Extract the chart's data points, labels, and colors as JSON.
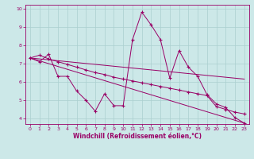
{
  "xlabel": "Windchill (Refroidissement éolien,°C)",
  "bg_color": "#cce8e8",
  "grid_color": "#aacfcf",
  "line_color": "#990066",
  "xlim": [
    -0.5,
    23.5
  ],
  "ylim": [
    3.7,
    10.2
  ],
  "xticks": [
    0,
    1,
    2,
    3,
    4,
    5,
    6,
    7,
    8,
    9,
    10,
    11,
    12,
    13,
    14,
    15,
    16,
    17,
    18,
    19,
    20,
    21,
    22,
    23
  ],
  "yticks": [
    4,
    5,
    6,
    7,
    8,
    9,
    10
  ],
  "series": [
    {
      "x": [
        0,
        1,
        2,
        3,
        4,
        5,
        6,
        7,
        8,
        9,
        10,
        11,
        12,
        13,
        14,
        15,
        16,
        17,
        18,
        19,
        20,
        21,
        22,
        23
      ],
      "y": [
        7.3,
        7.1,
        7.5,
        6.3,
        6.3,
        5.5,
        5.0,
        4.4,
        5.35,
        4.7,
        4.7,
        8.3,
        9.8,
        9.1,
        8.3,
        6.2,
        7.7,
        6.8,
        6.3,
        5.3,
        4.8,
        4.6,
        4.05,
        3.75
      ]
    },
    {
      "x": [
        0,
        1,
        2,
        3,
        4,
        5,
        6,
        7,
        8,
        9,
        10,
        11,
        12,
        13,
        14,
        15,
        16,
        17,
        18,
        19,
        20,
        21,
        22,
        23
      ],
      "y": [
        7.3,
        7.45,
        7.25,
        7.1,
        6.95,
        6.8,
        6.65,
        6.5,
        6.4,
        6.25,
        6.15,
        6.05,
        5.95,
        5.85,
        5.75,
        5.65,
        5.55,
        5.45,
        5.35,
        5.25,
        4.65,
        4.5,
        4.35,
        4.25
      ]
    },
    {
      "x": [
        0,
        23
      ],
      "y": [
        7.3,
        6.15
      ]
    },
    {
      "x": [
        0,
        23
      ],
      "y": [
        7.3,
        3.75
      ]
    }
  ]
}
